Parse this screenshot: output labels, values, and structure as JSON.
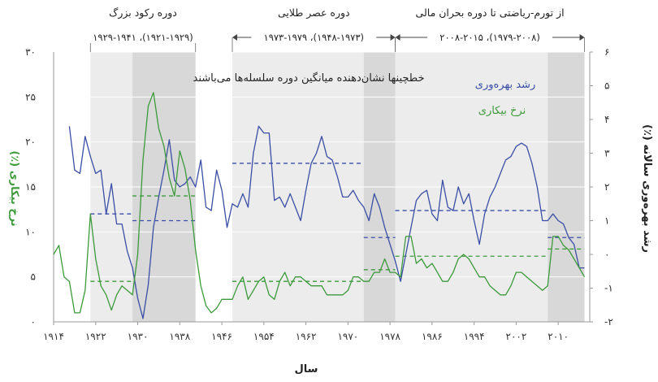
{
  "chart_data": {
    "type": "line",
    "xlabel": "سال",
    "ylabel_left": "نرخ بیکاری (٪)",
    "ylabel_right": "رشد بهره‌وری سالانه (٪)",
    "xlim": [
      1914,
      2016
    ],
    "ylim_left": [
      0,
      30
    ],
    "ylim_right": [
      -2,
      6
    ],
    "x_ticks": [
      1914,
      1922,
      1930,
      1938,
      1946,
      1954,
      1962,
      1970,
      1978,
      1986,
      1994,
      2002,
      2010
    ],
    "x_tick_labels": [
      "۱۹۱۴",
      "۱۹۲۲",
      "۱۹۳۰",
      "۱۹۳۸",
      "۱۹۴۶",
      "۱۹۵۴",
      "۱۹۶۲",
      "۱۹۷۰",
      "۱۹۷۸",
      "۱۹۸۶",
      "۱۹۹۴",
      "۲۰۰۲",
      "۲۰۱۰"
    ],
    "y_left_ticks": [
      0,
      5,
      10,
      15,
      20,
      25,
      30
    ],
    "y_left_tick_labels": [
      "۰",
      "۵",
      "۱۰",
      "۱۵",
      "۲۰",
      "۲۵",
      "۳۰"
    ],
    "y_right_ticks": [
      -2,
      -1,
      0,
      1,
      2,
      3,
      4,
      5,
      6
    ],
    "y_right_tick_labels": [
      "-۲",
      "-۱",
      "۰",
      "۱",
      "۲",
      "۳",
      "۴",
      "۵",
      "۶"
    ],
    "annotation": "خطچینها نشان‌دهنده میانگین دوره سلسله‌ها می‌باشند",
    "shaded_regions": [
      {
        "start": 1921,
        "end": 1929,
        "shade": "light"
      },
      {
        "start": 1929,
        "end": 1941,
        "shade": "dark"
      },
      {
        "start": 1948,
        "end": 1973,
        "shade": "light"
      },
      {
        "start": 1973,
        "end": 1979,
        "shade": "dark"
      },
      {
        "start": 1979,
        "end": 2008,
        "shade": "light"
      },
      {
        "start": 2008,
        "end": 2015,
        "shade": "dark"
      }
    ],
    "periods": [
      {
        "label": "دوره رکود بزرگ",
        "sub": "(۱۹۲۱-۱۹۲۹)، ۱۹۲۹-۱۹۴۱",
        "start": 1921,
        "end": 1941
      },
      {
        "label": "دوره عصر طلایی",
        "sub": "(۱۹۴۸-۱۹۷۳)، ۱۹۷۳-۱۹۷۹",
        "start": 1948,
        "end": 1979
      },
      {
        "label": "از تورم-رياضتی تا دوره بحران مالی",
        "sub": "(۱۹۷۹-۲۰۰۸)، ۲۰۰۸-۲۰۱۵",
        "start": 1979,
        "end": 2015
      }
    ],
    "series": [
      {
        "name": "رشد بهره‌وری",
        "axis": "right",
        "color": "#3a4ea6",
        "x": [
          1917,
          1918,
          1919,
          1920,
          1921,
          1922,
          1923,
          1924,
          1925,
          1926,
          1927,
          1928,
          1929,
          1930,
          1931,
          1932,
          1933,
          1934,
          1935,
          1936,
          1937,
          1938,
          1939,
          1940,
          1941,
          1942,
          1943,
          1944,
          1945,
          1946,
          1947,
          1948,
          1949,
          1950,
          1951,
          1952,
          1953,
          1954,
          1955,
          1956,
          1957,
          1958,
          1959,
          1960,
          1961,
          1962,
          1963,
          1964,
          1965,
          1966,
          1967,
          1968,
          1969,
          1970,
          1971,
          1972,
          1973,
          1974,
          1975,
          1976,
          1977,
          1978,
          1979,
          1980,
          1981,
          1982,
          1983,
          1984,
          1985,
          1986,
          1987,
          1988,
          1989,
          1990,
          1991,
          1992,
          1993,
          1994,
          1995,
          1996,
          1997,
          1998,
          1999,
          2000,
          2001,
          2002,
          2003,
          2004,
          2005,
          2006,
          2007,
          2008,
          2009,
          2010,
          2011,
          2012,
          2013,
          2014,
          2015
        ],
        "y": [
          3.8,
          2.5,
          2.4,
          3.5,
          2.9,
          2.4,
          2.5,
          1.2,
          2.1,
          0.9,
          0.9,
          0.1,
          -0.4,
          -1.3,
          -1.9,
          -0.9,
          0.8,
          1.7,
          2.5,
          3.4,
          2.2,
          2.0,
          2.1,
          2.3,
          2.0,
          2.8,
          1.4,
          1.3,
          2.5,
          1.9,
          0.8,
          1.5,
          1.4,
          1.8,
          1.4,
          3.0,
          3.8,
          3.6,
          3.6,
          1.6,
          1.7,
          1.4,
          1.8,
          1.4,
          1.0,
          1.9,
          2.7,
          3.0,
          3.5,
          2.9,
          2.8,
          2.3,
          1.7,
          1.7,
          1.9,
          1.6,
          1.4,
          1.0,
          1.8,
          1.4,
          0.8,
          0.3,
          -0.2,
          -0.8,
          0.0,
          0.8,
          1.6,
          1.8,
          1.9,
          1.2,
          1.0,
          2.2,
          1.4,
          1.3,
          2.0,
          1.5,
          1.8,
          1.0,
          0.3,
          1.2,
          1.7,
          2.0,
          2.4,
          2.8,
          2.9,
          3.2,
          3.3,
          3.2,
          2.7,
          2.0,
          1.0,
          1.0,
          1.2,
          1.0,
          0.9,
          0.5,
          0.3,
          -0.4,
          -0.4
        ]
      },
      {
        "name": "نرخ بیکاری",
        "axis": "left",
        "color": "#3c9a3a",
        "x": [
          1914,
          1915,
          1916,
          1917,
          1918,
          1919,
          1920,
          1921,
          1922,
          1923,
          1924,
          1925,
          1926,
          1927,
          1928,
          1929,
          1930,
          1931,
          1932,
          1933,
          1934,
          1935,
          1936,
          1937,
          1938,
          1939,
          1940,
          1941,
          1942,
          1943,
          1944,
          1945,
          1946,
          1947,
          1948,
          1949,
          1950,
          1951,
          1952,
          1953,
          1954,
          1955,
          1956,
          1957,
          1958,
          1959,
          1960,
          1961,
          1962,
          1963,
          1964,
          1965,
          1966,
          1967,
          1968,
          1969,
          1970,
          1971,
          1972,
          1973,
          1974,
          1975,
          1976,
          1977,
          1978,
          1979,
          1980,
          1981,
          1982,
          1983,
          1984,
          1985,
          1986,
          1987,
          1988,
          1989,
          1990,
          1991,
          1992,
          1993,
          1994,
          1995,
          1996,
          1997,
          1998,
          1999,
          2000,
          2001,
          2002,
          2003,
          2004,
          2005,
          2006,
          2007,
          2008,
          2009,
          2010,
          2011,
          2012,
          2013,
          2014,
          2015
        ],
        "y": [
          7.5,
          8.5,
          5.0,
          4.5,
          1.0,
          1.0,
          3.5,
          12.0,
          7.0,
          4.0,
          3.0,
          1.3,
          3.0,
          4.0,
          3.5,
          3.0,
          7.5,
          18.0,
          24.0,
          25.5,
          21.5,
          19.5,
          16.0,
          14.0,
          19.0,
          17.0,
          13.5,
          8.0,
          4.0,
          1.8,
          1.0,
          1.5,
          2.5,
          2.5,
          2.5,
          4.0,
          5.0,
          2.5,
          3.5,
          4.5,
          5.0,
          3.0,
          2.5,
          4.5,
          5.5,
          4.0,
          5.0,
          5.0,
          4.5,
          4.0,
          4.0,
          4.0,
          3.0,
          3.0,
          3.0,
          3.0,
          3.5,
          5.0,
          5.0,
          4.5,
          4.5,
          5.5,
          5.5,
          7.0,
          5.5,
          5.5,
          5.0,
          9.5,
          9.5,
          6.5,
          7.0,
          6.0,
          6.5,
          5.5,
          4.5,
          4.5,
          5.5,
          7.0,
          7.5,
          7.0,
          6.0,
          5.0,
          5.0,
          4.0,
          3.5,
          3.0,
          3.0,
          4.0,
          5.5,
          5.5,
          5.0,
          4.5,
          4.0,
          3.5,
          4.0,
          9.5,
          9.5,
          8.5,
          8.0,
          7.0,
          6.0,
          5.0
        ]
      }
    ],
    "averages": {
      "productivity": [
        {
          "start": 1921,
          "end": 1929,
          "value": 1.2
        },
        {
          "start": 1929,
          "end": 1941,
          "value": 1.0
        },
        {
          "start": 1948,
          "end": 1973,
          "value": 2.7
        },
        {
          "start": 1973,
          "end": 1979,
          "value": 0.5
        },
        {
          "start": 1979,
          "end": 2008,
          "value": 1.3
        },
        {
          "start": 2008,
          "end": 2015,
          "value": 0.5
        }
      ],
      "unemployment": [
        {
          "start": 1921,
          "end": 1929,
          "value": 4.5
        },
        {
          "start": 1929,
          "end": 1941,
          "value": 14.0
        },
        {
          "start": 1948,
          "end": 1973,
          "value": 4.5
        },
        {
          "start": 1973,
          "end": 1979,
          "value": 5.8
        },
        {
          "start": 1979,
          "end": 2008,
          "value": 7.3
        },
        {
          "start": 2008,
          "end": 2015,
          "value": 8.1
        }
      ]
    },
    "colors": {
      "shade_light": "#ececec",
      "shade_dark": "#d8d8d8",
      "productivity": "#3a4ea6",
      "unemployment": "#3c9a3a",
      "axis_label_left": "#3c9a3a",
      "axis_label_right": "#222222"
    }
  }
}
